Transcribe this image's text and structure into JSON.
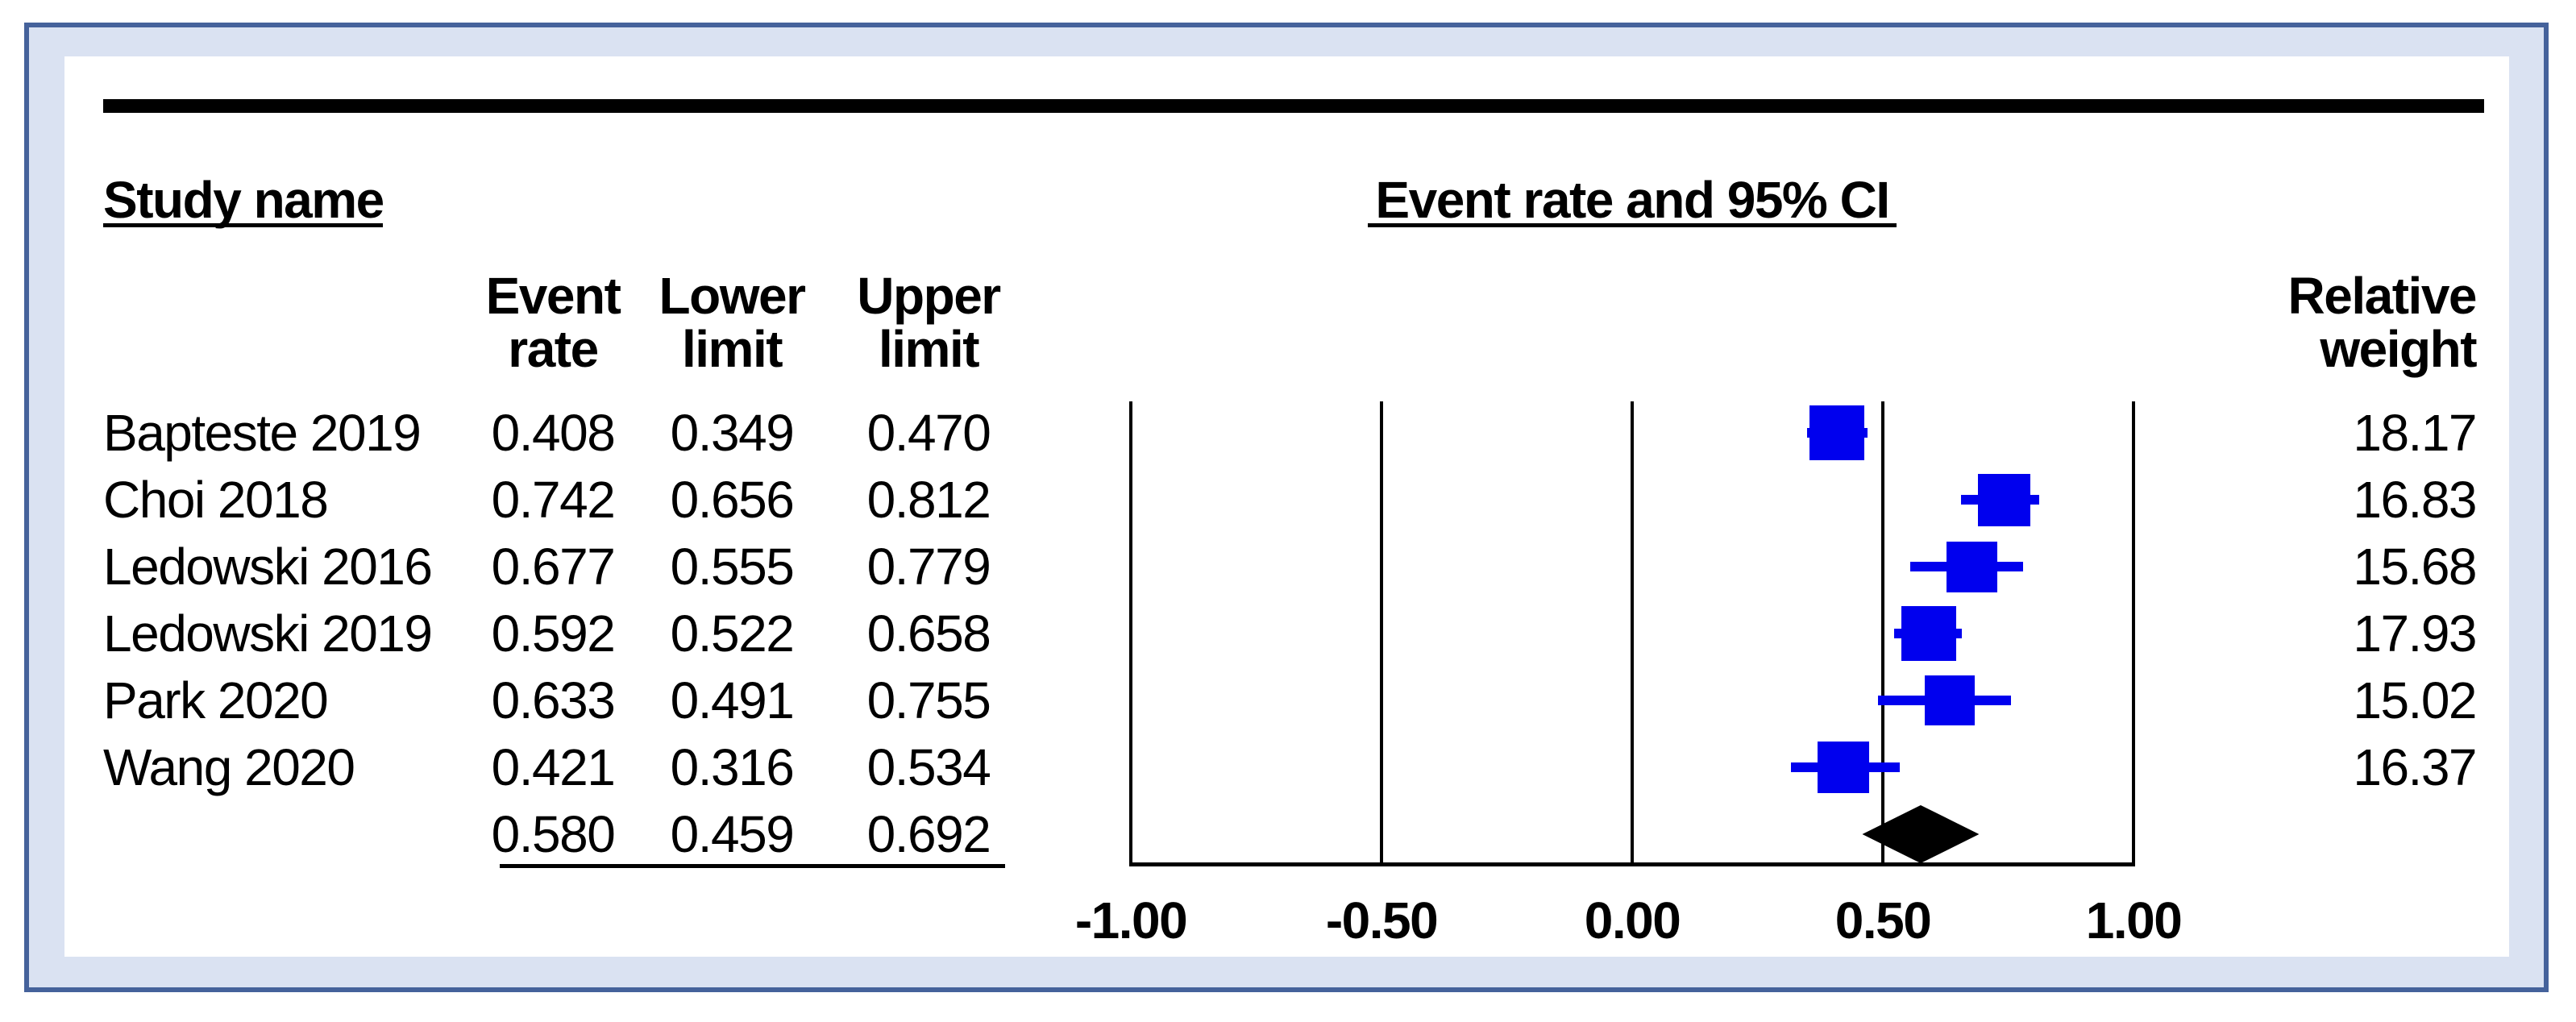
{
  "figure": {
    "frame_border_color": "#45629b",
    "frame_fill_color": "#dae2f2",
    "panel_color": "#ffffff"
  },
  "headers": {
    "study_name": "Study name",
    "plot_title": "Event rate and 95% CI",
    "col_event_rate": [
      "Event",
      "rate"
    ],
    "col_lower": [
      "Lower",
      "limit"
    ],
    "col_upper": [
      "Upper",
      "limit"
    ],
    "col_weight": [
      "Relative",
      "weight"
    ]
  },
  "chart_data": {
    "type": "forest",
    "title": "Event rate and 95% CI",
    "effect_measure": "Event rate",
    "marker_color": "#0000ee",
    "diamond_color": "#000000",
    "studies": [
      {
        "name": "Bapteste 2019",
        "event_rate": 0.408,
        "lower": 0.349,
        "upper": 0.47,
        "weight": 18.17
      },
      {
        "name": "Choi 2018",
        "event_rate": 0.742,
        "lower": 0.656,
        "upper": 0.812,
        "weight": 16.83
      },
      {
        "name": "Ledowski 2016",
        "event_rate": 0.677,
        "lower": 0.555,
        "upper": 0.779,
        "weight": 15.68
      },
      {
        "name": "Ledowski 2019",
        "event_rate": 0.592,
        "lower": 0.522,
        "upper": 0.658,
        "weight": 17.93
      },
      {
        "name": "Park 2020",
        "event_rate": 0.633,
        "lower": 0.491,
        "upper": 0.755,
        "weight": 15.02
      },
      {
        "name": "Wang 2020",
        "event_rate": 0.421,
        "lower": 0.316,
        "upper": 0.534,
        "weight": 16.37
      }
    ],
    "summary": {
      "event_rate": 0.58,
      "lower": 0.459,
      "upper": 0.692
    },
    "x_axis": {
      "range": [
        -1.0,
        1.0
      ],
      "ticks": [
        -1.0,
        -0.5,
        0.0,
        0.5,
        1.0
      ],
      "tick_labels": [
        "-1.00",
        "-0.50",
        "0.00",
        "0.50",
        "1.00"
      ],
      "grid": true,
      "gridline_color": "#000000"
    }
  }
}
